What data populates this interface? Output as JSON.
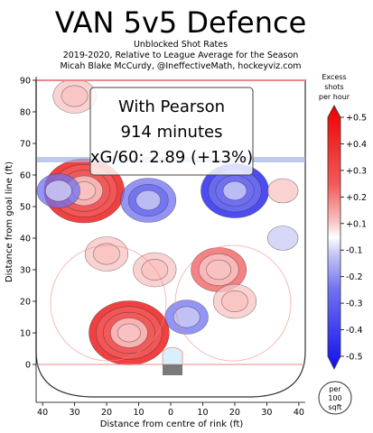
{
  "header": {
    "title": "VAN 5v5 Defence",
    "subtitle_lines": [
      "Unblocked Shot Rates",
      "2019-2020, Relative to League Average for the Season",
      "Micah Blake McCurdy, @IneffectiveMath, hockeyviz.com"
    ]
  },
  "infobox": {
    "lines": [
      "With Pearson",
      "914 minutes",
      "xG/60: 2.89 (+13%)"
    ]
  },
  "colorbar": {
    "title_lines": [
      "Excess",
      "shots",
      "per hour"
    ],
    "tick_labels": [
      "+0.5",
      "+0.4",
      "+0.3",
      "+0.2",
      "+0.1",
      "-0.1",
      "-0.2",
      "-0.3",
      "-0.4",
      "-0.5"
    ]
  },
  "unit_badge": {
    "lines": [
      "per",
      "100",
      "sqft"
    ]
  },
  "colors": {
    "red_strong": "#ee0000",
    "red_mid": "#f25a5a",
    "red_light": "#f9c3c3",
    "blue_strong": "#1010ee",
    "blue_mid": "#7070f0",
    "blue_light": "#c9c9f6",
    "rink_line": "#ee8888",
    "blue_line": "#9fb5e3"
  },
  "chart_data": {
    "type": "heatmap",
    "xlabel": "Distance from centre of rink (ft)",
    "ylabel": "Distance from goal line (ft)",
    "xlim": [
      -42,
      42
    ],
    "ylim": [
      -12,
      90
    ],
    "x_ticks": [
      -40,
      -30,
      -20,
      -10,
      0,
      10,
      20,
      30,
      40
    ],
    "x_tick_labels": [
      "40",
      "30",
      "20",
      "10",
      "0",
      "10",
      "20",
      "30",
      "40"
    ],
    "y_ticks": [
      0,
      10,
      20,
      30,
      40,
      50,
      60,
      70,
      80,
      90
    ],
    "y_tick_labels": [
      "0",
      "10",
      "20",
      "30",
      "40",
      "50",
      "60",
      "70",
      "80",
      "90"
    ],
    "value_range": [
      -0.5,
      0.5
    ],
    "regions": [
      {
        "x": -13,
        "y": 10,
        "value": 0.5
      },
      {
        "x": -27,
        "y": 55,
        "value": 0.5
      },
      {
        "x": -5,
        "y": 30,
        "value": 0.2
      },
      {
        "x": 15,
        "y": 30,
        "value": 0.3
      },
      {
        "x": 20,
        "y": 20,
        "value": 0.2
      },
      {
        "x": -20,
        "y": 35,
        "value": 0.2
      },
      {
        "x": -30,
        "y": 85,
        "value": 0.2
      },
      {
        "x": 20,
        "y": 55,
        "value": -0.4
      },
      {
        "x": -7,
        "y": 52,
        "value": -0.3
      },
      {
        "x": -35,
        "y": 55,
        "value": -0.2
      },
      {
        "x": 5,
        "y": 15,
        "value": -0.2
      },
      {
        "x": 35,
        "y": 40,
        "value": -0.1
      },
      {
        "x": 35,
        "y": 55,
        "value": 0.1
      }
    ]
  }
}
